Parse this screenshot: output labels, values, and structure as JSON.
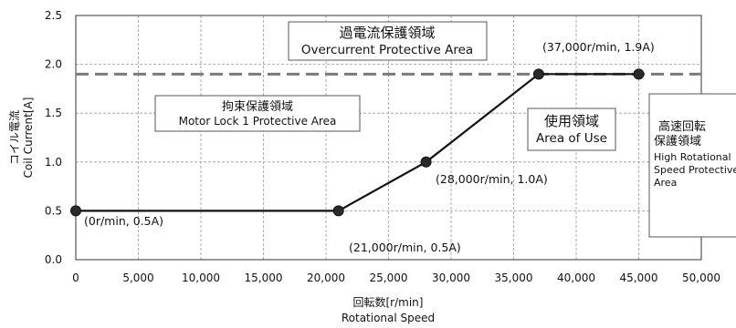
{
  "chart_data": {
    "type": "line",
    "title": "",
    "xlabel_jp": "回転数[r/min]",
    "xlabel_en": "Rotational Speed",
    "ylabel_jp": "コイル電流",
    "ylabel_en": "Coil Current[A]",
    "xlim": [
      0,
      50000
    ],
    "ylim": [
      0,
      2.5
    ],
    "x_ticks": [
      "0",
      "5,000",
      "10,000",
      "15,000",
      "20,000",
      "25,000",
      "30,000",
      "35,000",
      "40,000",
      "45,000",
      "50,000"
    ],
    "y_ticks": [
      "0.0",
      "0.5",
      "1.0",
      "1.5",
      "2.0",
      "2.5"
    ],
    "grid": true,
    "series": [
      {
        "x": [
          0,
          21000,
          28000,
          37000,
          45000
        ],
        "y": [
          0.5,
          0.5,
          1.0,
          1.9,
          1.9
        ]
      }
    ],
    "limit_line": {
      "y": 1.9,
      "style": "dashed"
    },
    "annotations": [
      {
        "text": "(0r/min, 0.5A)"
      },
      {
        "text": "(21,000r/min, 0.5A)"
      },
      {
        "text": "(28,000r/min, 1.0A)"
      },
      {
        "text": "(37,000r/min, 1.9A)"
      }
    ],
    "zones": {
      "overcurrent": {
        "jp": "過電流保護領域",
        "en": "Overcurrent Protective Area"
      },
      "motor_lock": {
        "jp": "拘束保護領域",
        "en": "Motor Lock 1 Protective Area"
      },
      "use": {
        "jp": "使用領域",
        "en": "Area of Use"
      },
      "high_speed": {
        "jp1": "高速回転",
        "jp2": "保護領域",
        "en1": "High Rotational",
        "en2": "Speed Protective",
        "en3": "Area"
      }
    }
  }
}
